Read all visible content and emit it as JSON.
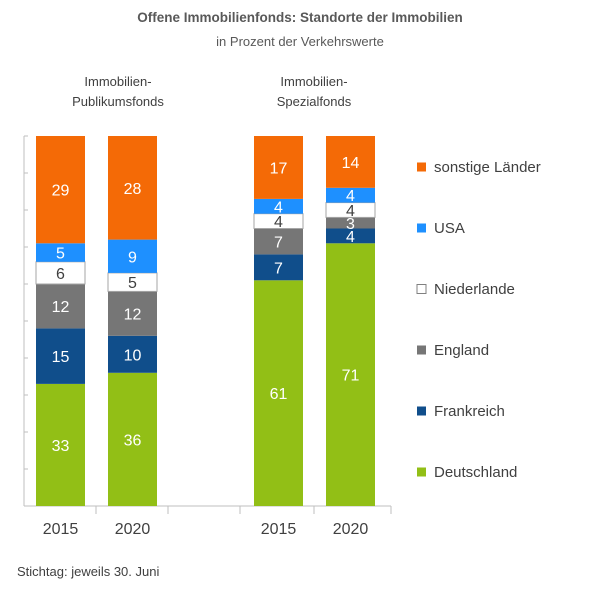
{
  "chart_data": {
    "type": "bar",
    "stacked": true,
    "title": "Offene Immobilienfonds: Standorte der Immobilien",
    "subtitle": "in Prozent der Verkehrswerte",
    "groups": [
      {
        "label_line1": "Immobilien-",
        "label_line2": "Publikumsfonds",
        "categories": [
          "2015",
          "2020"
        ]
      },
      {
        "label_line1": "Immobilien-",
        "label_line2": "Spezialfonds",
        "categories": [
          "2015",
          "2020"
        ]
      }
    ],
    "categories": [
      "2015",
      "2020",
      "2015",
      "2020"
    ],
    "ylim": [
      0,
      100
    ],
    "series": [
      {
        "name": "Deutschland",
        "color": "#92bf16",
        "values": [
          33,
          36,
          61,
          71
        ]
      },
      {
        "name": "Frankreich",
        "color": "#104e8b",
        "values": [
          15,
          10,
          7,
          4
        ]
      },
      {
        "name": "England",
        "color": "#767676",
        "values": [
          12,
          12,
          7,
          3
        ]
      },
      {
        "name": "Niederlande",
        "color": "#ffffff",
        "values": [
          6,
          5,
          4,
          4
        ]
      },
      {
        "name": "USA",
        "color": "#1e90ff",
        "values": [
          5,
          9,
          4,
          4
        ]
      },
      {
        "name": "sonstige Länder",
        "color": "#f46a06",
        "values": [
          29,
          28,
          17,
          14
        ]
      }
    ],
    "legend_position": "right"
  },
  "footnote": "Stichtag: jeweils 30. Juni"
}
